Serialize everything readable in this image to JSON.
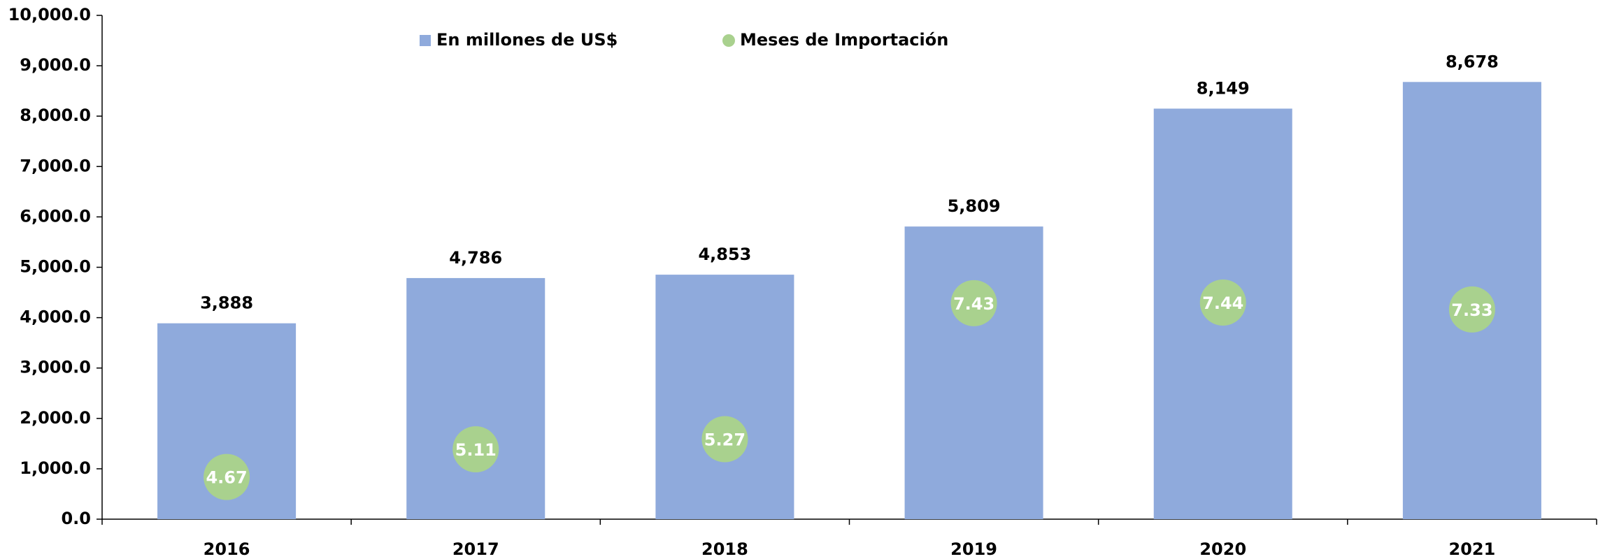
{
  "chart_data": {
    "type": "bar",
    "categories": [
      "2016",
      "2017",
      "2018",
      "2019",
      "2020",
      "2021"
    ],
    "series": [
      {
        "name": "En millones de US$",
        "type": "bar",
        "color": "#8faadc",
        "values": [
          3888,
          4786,
          4853,
          5809,
          8149,
          8678
        ],
        "value_labels": [
          "3,888",
          "4,786",
          "4,853",
          "5,809",
          "8,149",
          "8,678"
        ]
      },
      {
        "name": "Meses de Importación",
        "type": "scatter",
        "color": "#a9d18e",
        "axis": "y2",
        "values": [
          4.67,
          5.11,
          5.27,
          7.43,
          7.44,
          7.33
        ]
      }
    ],
    "ylim": [
      0,
      10000
    ],
    "yticks": [
      {
        "value": 0,
        "label": "0.0"
      },
      {
        "value": 1000,
        "label": "1,000.0"
      },
      {
        "value": 2000,
        "label": "2,000.0"
      },
      {
        "value": 3000,
        "label": "3,000.0"
      },
      {
        "value": 4000,
        "label": "4,000.0"
      },
      {
        "value": 5000,
        "label": "5,000.0"
      },
      {
        "value": 6000,
        "label": "6,000.0"
      },
      {
        "value": 7000,
        "label": "7,000.0"
      },
      {
        "value": 8000,
        "label": "8,000.0"
      },
      {
        "value": 9000,
        "label": "9,000.0"
      },
      {
        "value": 10000,
        "label": "10,000.0"
      }
    ],
    "y2lim": [
      4,
      12
    ],
    "legend": "top"
  }
}
